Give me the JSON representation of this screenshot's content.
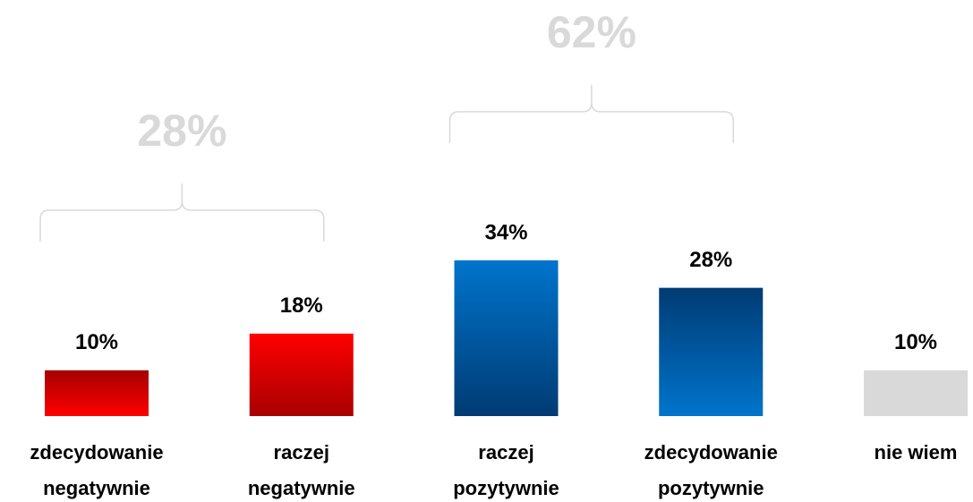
{
  "chart_data": {
    "type": "bar",
    "categories": [
      "zdecydowanie\nnegatywnie",
      "raczej\nnegatywnie",
      "raczej\npozytywnie",
      "zdecydowanie\npozytywnie",
      "nie wiem"
    ],
    "values": [
      10,
      18,
      34,
      28,
      10
    ],
    "value_labels": [
      "10%",
      "18%",
      "34%",
      "28%",
      "10%"
    ],
    "colors": [
      [
        "#a50000",
        "#ff0000"
      ],
      [
        "#ff0000",
        "#a80000"
      ],
      [
        "#0074cc",
        "#003b73"
      ],
      [
        "#003b73",
        "#0074cc"
      ],
      [
        "#d9d9d9",
        "#d9d9d9"
      ]
    ],
    "groups": [
      {
        "value": 28,
        "label": "28%",
        "members": [
          0,
          1
        ]
      },
      {
        "value": 62,
        "label": "62%",
        "members": [
          2,
          3
        ]
      }
    ]
  }
}
